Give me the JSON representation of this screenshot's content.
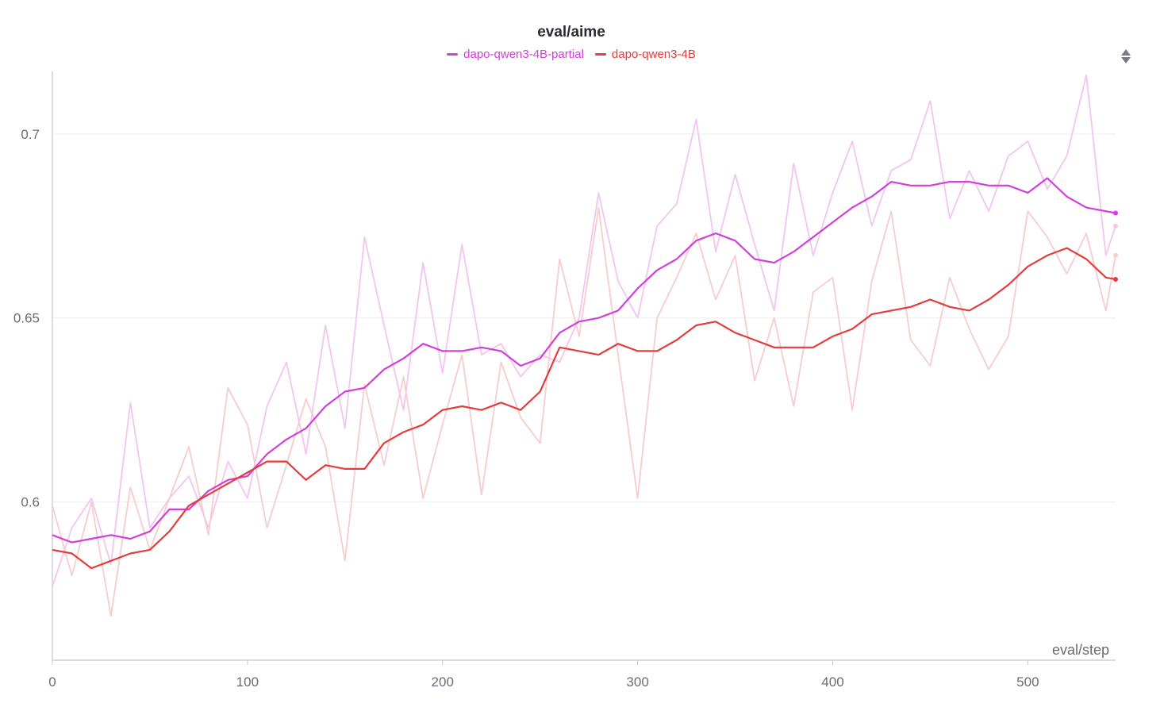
{
  "chart_data": {
    "type": "line",
    "title": "eval/aime",
    "xlabel": "eval/step",
    "ylabel": "",
    "xlim": [
      0,
      545
    ],
    "ylim": [
      0.557,
      0.717
    ],
    "x_ticks": [
      0,
      100,
      200,
      300,
      400,
      500
    ],
    "y_ticks": [
      0.6,
      0.65,
      0.7
    ],
    "x_tick_labels": [
      "0",
      "100",
      "200",
      "300",
      "400",
      "500"
    ],
    "y_tick_labels": [
      "0.6",
      "0.65",
      "0.7"
    ],
    "grid": true,
    "legend_position": "top-center",
    "series": [
      {
        "name": "dapo-qwen3-4B-partial",
        "color": "#d23fd8",
        "raw_color": "#f3c4f2",
        "x": [
          0,
          10,
          20,
          30,
          40,
          50,
          60,
          70,
          80,
          90,
          100,
          110,
          120,
          130,
          140,
          150,
          160,
          170,
          180,
          190,
          200,
          210,
          220,
          230,
          240,
          250,
          260,
          270,
          280,
          290,
          300,
          310,
          320,
          330,
          340,
          350,
          360,
          370,
          380,
          390,
          400,
          410,
          420,
          430,
          440,
          450,
          460,
          470,
          480,
          490,
          500,
          510,
          520,
          530,
          540,
          545
        ],
        "raw": [
          0.577,
          0.593,
          0.601,
          0.583,
          0.627,
          0.593,
          0.601,
          0.607,
          0.593,
          0.611,
          0.601,
          0.626,
          0.638,
          0.613,
          0.648,
          0.62,
          0.672,
          0.648,
          0.625,
          0.665,
          0.635,
          0.67,
          0.64,
          0.643,
          0.634,
          0.64,
          0.638,
          0.65,
          0.684,
          0.66,
          0.65,
          0.675,
          0.681,
          0.704,
          0.668,
          0.689,
          0.67,
          0.652,
          0.692,
          0.667,
          0.684,
          0.698,
          0.675,
          0.69,
          0.693,
          0.709,
          0.677,
          0.69,
          0.679,
          0.694,
          0.698,
          0.685,
          0.694,
          0.716,
          0.667,
          0.675
        ],
        "smoothed": [
          0.591,
          0.589,
          0.59,
          0.591,
          0.59,
          0.592,
          0.598,
          0.598,
          0.603,
          0.606,
          0.607,
          0.613,
          0.617,
          0.62,
          0.626,
          0.63,
          0.631,
          0.636,
          0.639,
          0.643,
          0.641,
          0.641,
          0.642,
          0.641,
          0.637,
          0.639,
          0.646,
          0.649,
          0.65,
          0.652,
          0.658,
          0.663,
          0.666,
          0.671,
          0.673,
          0.671,
          0.666,
          0.665,
          0.668,
          0.672,
          0.676,
          0.68,
          0.683,
          0.687,
          0.686,
          0.686,
          0.687,
          0.687,
          0.686,
          0.686,
          0.684,
          0.688,
          0.683,
          0.68,
          0.679,
          0.6785
        ],
        "end_label": "dapo-qwen3-4B-partial"
      },
      {
        "name": "dapo-qwen3-4B",
        "color": "#e53b3b",
        "raw_color": "#f8cccc",
        "x": [
          0,
          10,
          20,
          30,
          40,
          50,
          60,
          70,
          80,
          90,
          100,
          110,
          120,
          130,
          140,
          150,
          160,
          170,
          180,
          190,
          200,
          210,
          220,
          230,
          240,
          250,
          260,
          270,
          280,
          290,
          300,
          310,
          320,
          330,
          340,
          350,
          360,
          370,
          380,
          390,
          400,
          410,
          420,
          430,
          440,
          450,
          460,
          470,
          480,
          490,
          500,
          510,
          520,
          530,
          540,
          545
        ],
        "raw": [
          0.599,
          0.58,
          0.6,
          0.569,
          0.604,
          0.587,
          0.601,
          0.615,
          0.591,
          0.631,
          0.621,
          0.593,
          0.61,
          0.628,
          0.615,
          0.584,
          0.632,
          0.61,
          0.634,
          0.601,
          0.621,
          0.64,
          0.602,
          0.638,
          0.623,
          0.616,
          0.666,
          0.645,
          0.68,
          0.64,
          0.601,
          0.65,
          0.661,
          0.673,
          0.655,
          0.667,
          0.633,
          0.65,
          0.626,
          0.657,
          0.661,
          0.625,
          0.66,
          0.679,
          0.644,
          0.637,
          0.661,
          0.647,
          0.636,
          0.645,
          0.679,
          0.672,
          0.662,
          0.673,
          0.652,
          0.667
        ],
        "smoothed": [
          0.587,
          0.586,
          0.582,
          0.584,
          0.586,
          0.587,
          0.592,
          0.599,
          0.602,
          0.605,
          0.608,
          0.611,
          0.611,
          0.606,
          0.61,
          0.609,
          0.609,
          0.616,
          0.619,
          0.621,
          0.625,
          0.626,
          0.625,
          0.627,
          0.625,
          0.63,
          0.642,
          0.641,
          0.64,
          0.643,
          0.641,
          0.641,
          0.644,
          0.648,
          0.649,
          0.646,
          0.644,
          0.642,
          0.642,
          0.642,
          0.645,
          0.647,
          0.651,
          0.652,
          0.653,
          0.655,
          0.653,
          0.652,
          0.655,
          0.659,
          0.664,
          0.667,
          0.669,
          0.666,
          0.661,
          0.6605
        ],
        "end_label": "dapo-qwen3-4B"
      }
    ]
  }
}
